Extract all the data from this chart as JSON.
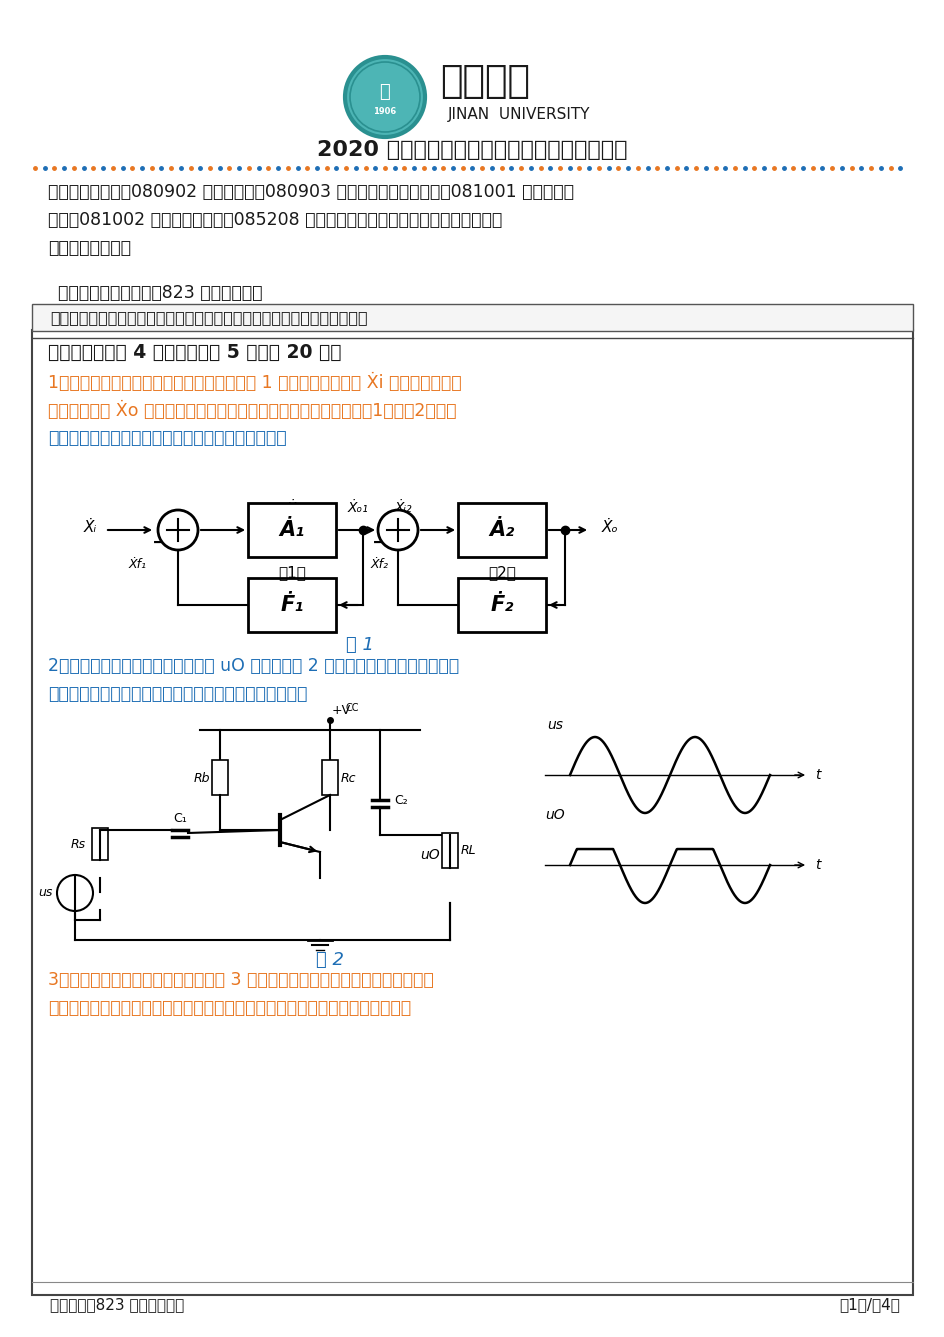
{
  "bg_color": "#ffffff",
  "title_main": "2020 年招收攻读硕士学位研究生入学考试试题",
  "header_text1": "招生专业与代码：080902 电路与系统、080903 微电子学与固体电子学、081001 通信与信息",
  "header_text2": "系统、081002 信号与信息处理、085208 电子与通信工程（专业学位）、物理电子学",
  "header_text3": "研究方向：各方向",
  "exam_subject": "考试科目名称及代码：823 电子技术基础",
  "notice": "考生注意：所有答案必须写在答题纸（卷）上，写在本试题上一律不给分。",
  "section1": "一、简答题（共 4 小题，每小题 5 分，共 20 分）",
  "q1_line1": "1、有一多级放大电路包含两个反馈环，如图 1 所示。假定信号源 Ẋi 为理想电压源，",
  "q1_line2": "要求能稳定的 Ẋo 为电流，试问：为取得满意的反馈效果，反馈环（1）和（2）应分",
  "q1_line3": "别采用何种组态的负反馈（说明有哪几种可能性）？",
  "fig1_label": "图 1",
  "q2_line1": "2、放大电路和示波器测得输出电压 uO 的波形如图 2 所示，试问该放大电路产生了",
  "q2_line2": "什么失真（饱和、截止）？为消除失真应采取什么措施？",
  "fig2_label": "图 2",
  "q3_line1": "3、某放大电路的折线近似波特图如图 3 所示，试问在中频段该放大电路输出电压",
  "q3_line2": "与输入电压是同相还是反向的？它的上、下限截止频率和通频带宽度各为多少？",
  "footer_subject": "考试科目：823 电子技术基础",
  "footer_page": "第1页/共4页",
  "orange": "#e87722",
  "blue": "#1e6eb5",
  "black": "#1a1a1a",
  "teal": "#2a9090"
}
